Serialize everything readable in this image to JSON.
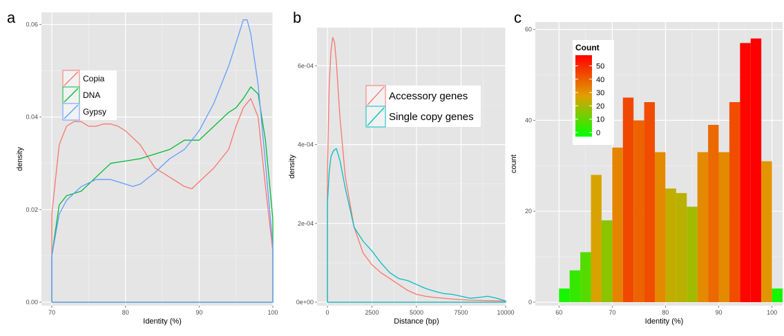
{
  "chart_data": [
    {
      "panel": "a",
      "type": "line",
      "xlabel": "Identity (%)",
      "ylabel": "density",
      "xlim": [
        70,
        100
      ],
      "ylim": [
        0,
        0.062
      ],
      "x_ticks": [
        70,
        80,
        90,
        100
      ],
      "y_ticks": [
        0.0,
        0.02,
        0.04,
        0.06
      ],
      "y_tick_labels": [
        "0.00",
        "0.02",
        "0.04",
        "0.06"
      ],
      "grid": true,
      "legend": "top-left",
      "series": [
        {
          "name": "Copia",
          "color": "#f8766d",
          "points": [
            [
              70,
              0.019
            ],
            [
              71,
              0.034
            ],
            [
              72,
              0.038
            ],
            [
              73,
              0.039
            ],
            [
              74,
              0.039
            ],
            [
              75,
              0.038
            ],
            [
              76,
              0.038
            ],
            [
              77,
              0.0385
            ],
            [
              78,
              0.0385
            ],
            [
              79,
              0.038
            ],
            [
              80,
              0.037
            ],
            [
              82,
              0.034
            ],
            [
              84,
              0.029
            ],
            [
              86,
              0.027
            ],
            [
              88,
              0.025
            ],
            [
              89,
              0.0245
            ],
            [
              90,
              0.026
            ],
            [
              92,
              0.029
            ],
            [
              94,
              0.033
            ],
            [
              95,
              0.038
            ],
            [
              96,
              0.042
            ],
            [
              97,
              0.044
            ],
            [
              98,
              0.04
            ],
            [
              99,
              0.025
            ],
            [
              100,
              0.011
            ]
          ]
        },
        {
          "name": "DNA",
          "color": "#00ba38",
          "points": [
            [
              70,
              0.01
            ],
            [
              71,
              0.021
            ],
            [
              72,
              0.023
            ],
            [
              74,
              0.024
            ],
            [
              76,
              0.027
            ],
            [
              78,
              0.03
            ],
            [
              80,
              0.0305
            ],
            [
              82,
              0.031
            ],
            [
              84,
              0.032
            ],
            [
              86,
              0.033
            ],
            [
              88,
              0.035
            ],
            [
              90,
              0.035
            ],
            [
              92,
              0.038
            ],
            [
              94,
              0.041
            ],
            [
              95,
              0.042
            ],
            [
              96,
              0.044
            ],
            [
              97,
              0.0465
            ],
            [
              98,
              0.045
            ],
            [
              99,
              0.035
            ],
            [
              100,
              0.018
            ]
          ]
        },
        {
          "name": "Gypsy",
          "color": "#619cff",
          "points": [
            [
              70,
              0.01
            ],
            [
              71,
              0.019
            ],
            [
              72,
              0.022
            ],
            [
              74,
              0.025
            ],
            [
              76,
              0.0265
            ],
            [
              78,
              0.0265
            ],
            [
              80,
              0.0255
            ],
            [
              81,
              0.025
            ],
            [
              82,
              0.0255
            ],
            [
              84,
              0.028
            ],
            [
              86,
              0.031
            ],
            [
              88,
              0.033
            ],
            [
              90,
              0.037
            ],
            [
              92,
              0.043
            ],
            [
              94,
              0.051
            ],
            [
              95,
              0.056
            ],
            [
              96,
              0.061
            ],
            [
              96.5,
              0.061
            ],
            [
              97,
              0.058
            ],
            [
              98,
              0.047
            ],
            [
              99,
              0.03
            ],
            [
              100,
              0.012
            ]
          ]
        }
      ]
    },
    {
      "panel": "b",
      "type": "line",
      "xlabel": "Distance (bp)",
      "ylabel": "density",
      "xlim": [
        0,
        10000
      ],
      "ylim": [
        0,
        0.00069
      ],
      "x_ticks": [
        0,
        2500,
        5000,
        7500,
        10000
      ],
      "y_ticks": [
        0,
        0.0002,
        0.0004,
        0.0006
      ],
      "y_tick_labels": [
        "0e+00",
        "2e-04",
        "4e-04",
        "6e-04"
      ],
      "grid": true,
      "legend": "top-right",
      "series": [
        {
          "name": "Accessory genes",
          "color": "#f8766d",
          "points": [
            [
              0,
              0.00033
            ],
            [
              100,
              0.00055
            ],
            [
              200,
              0.00064
            ],
            [
              300,
              0.000672
            ],
            [
              400,
              0.00066
            ],
            [
              500,
              0.00061
            ],
            [
              700,
              0.00047
            ],
            [
              1000,
              0.00032
            ],
            [
              1500,
              0.00019
            ],
            [
              2000,
              0.000125
            ],
            [
              2500,
              9.5e-05
            ],
            [
              3000,
              7.5e-05
            ],
            [
              3500,
              6e-05
            ],
            [
              4000,
              4.5e-05
            ],
            [
              4500,
              3e-05
            ],
            [
              5000,
              2e-05
            ],
            [
              5500,
              1.5e-05
            ],
            [
              6000,
              1.2e-05
            ],
            [
              7000,
              8e-06
            ],
            [
              8000,
              5e-06
            ],
            [
              9000,
              4e-06
            ],
            [
              10000,
              3e-06
            ]
          ]
        },
        {
          "name": "Single copy genes",
          "color": "#00bfc4",
          "points": [
            [
              0,
              0.00025
            ],
            [
              100,
              0.00033
            ],
            [
              200,
              0.00037
            ],
            [
              350,
              0.000385
            ],
            [
              500,
              0.00039
            ],
            [
              700,
              0.00036
            ],
            [
              1000,
              0.00029
            ],
            [
              1500,
              0.00019
            ],
            [
              2000,
              0.000155
            ],
            [
              2500,
              0.00013
            ],
            [
              3000,
              0.0001
            ],
            [
              3500,
              7.5e-05
            ],
            [
              4000,
              6e-05
            ],
            [
              4500,
              5.5e-05
            ],
            [
              5000,
              4.5e-05
            ],
            [
              5500,
              3.5e-05
            ],
            [
              6000,
              2.8e-05
            ],
            [
              6500,
              2.2e-05
            ],
            [
              7000,
              2e-05
            ],
            [
              7500,
              1.5e-05
            ],
            [
              8000,
              1e-05
            ],
            [
              8500,
              1.2e-05
            ],
            [
              9000,
              1.5e-05
            ],
            [
              9500,
              1e-05
            ],
            [
              10000,
              3e-06
            ]
          ]
        }
      ]
    },
    {
      "panel": "c",
      "type": "bar",
      "xlabel": "Identity (%)",
      "ylabel": "count",
      "xlim": [
        57.5,
        102
      ],
      "ylim": [
        0,
        61
      ],
      "x_ticks": [
        60,
        70,
        80,
        90,
        100
      ],
      "y_ticks": [
        0,
        20,
        40,
        60
      ],
      "grid": true,
      "legend": "top-left",
      "legend_title": "Count",
      "legend_ticks": [
        0,
        10,
        20,
        30,
        40,
        50
      ],
      "color_scale": {
        "low": "#00ff00",
        "mid": "#e0a000",
        "high": "#ff0000",
        "min": 0,
        "max": 58
      },
      "bin_width": 2,
      "bin_starts": [
        60,
        62,
        64,
        66,
        68,
        70,
        72,
        74,
        76,
        78,
        80,
        82,
        84,
        86,
        88,
        90,
        92,
        94,
        96,
        98,
        100
      ],
      "values": [
        3,
        7,
        11,
        28,
        18,
        34,
        45,
        40,
        44,
        33,
        25,
        24,
        21,
        33,
        39,
        33,
        44,
        57,
        58,
        31,
        3
      ]
    }
  ]
}
